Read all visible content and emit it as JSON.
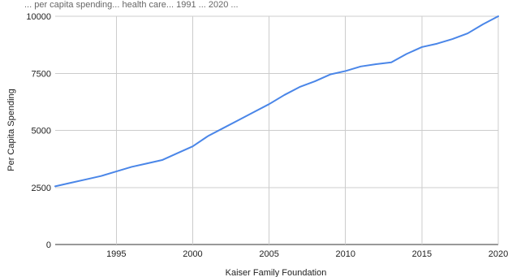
{
  "chart_data": {
    "type": "line",
    "title": "",
    "xlabel": "Kaiser Family Foundation",
    "ylabel": "Per Capita Spending",
    "xlim": [
      1991,
      2020
    ],
    "ylim": [
      0,
      10000
    ],
    "x_ticks": [
      1995,
      2000,
      2005,
      2010,
      2015,
      2020
    ],
    "y_ticks": [
      0,
      2500,
      5000,
      7500,
      10000
    ],
    "grid": true,
    "legend": "none",
    "series": [
      {
        "color": "#4a86e8",
        "x": [
          1991,
          1992,
          1993,
          1994,
          1995,
          1996,
          1997,
          1998,
          1999,
          2000,
          2001,
          2002,
          2003,
          2004,
          2005,
          2006,
          2007,
          2008,
          2009,
          2010,
          2011,
          2012,
          2013,
          2014,
          2015,
          2016,
          2017,
          2018,
          2019,
          2020
        ],
        "y": [
          2550,
          2700,
          2850,
          3000,
          3200,
          3400,
          3550,
          3700,
          4000,
          4300,
          4750,
          5100,
          5450,
          5800,
          6150,
          6550,
          6900,
          7150,
          7450,
          7600,
          7800,
          7900,
          7980,
          8350,
          8650,
          8800,
          9000,
          9250,
          9650,
          10000
        ]
      }
    ]
  },
  "top_caption": "... per capita spending... health care... 1991 ... 2020 ..."
}
